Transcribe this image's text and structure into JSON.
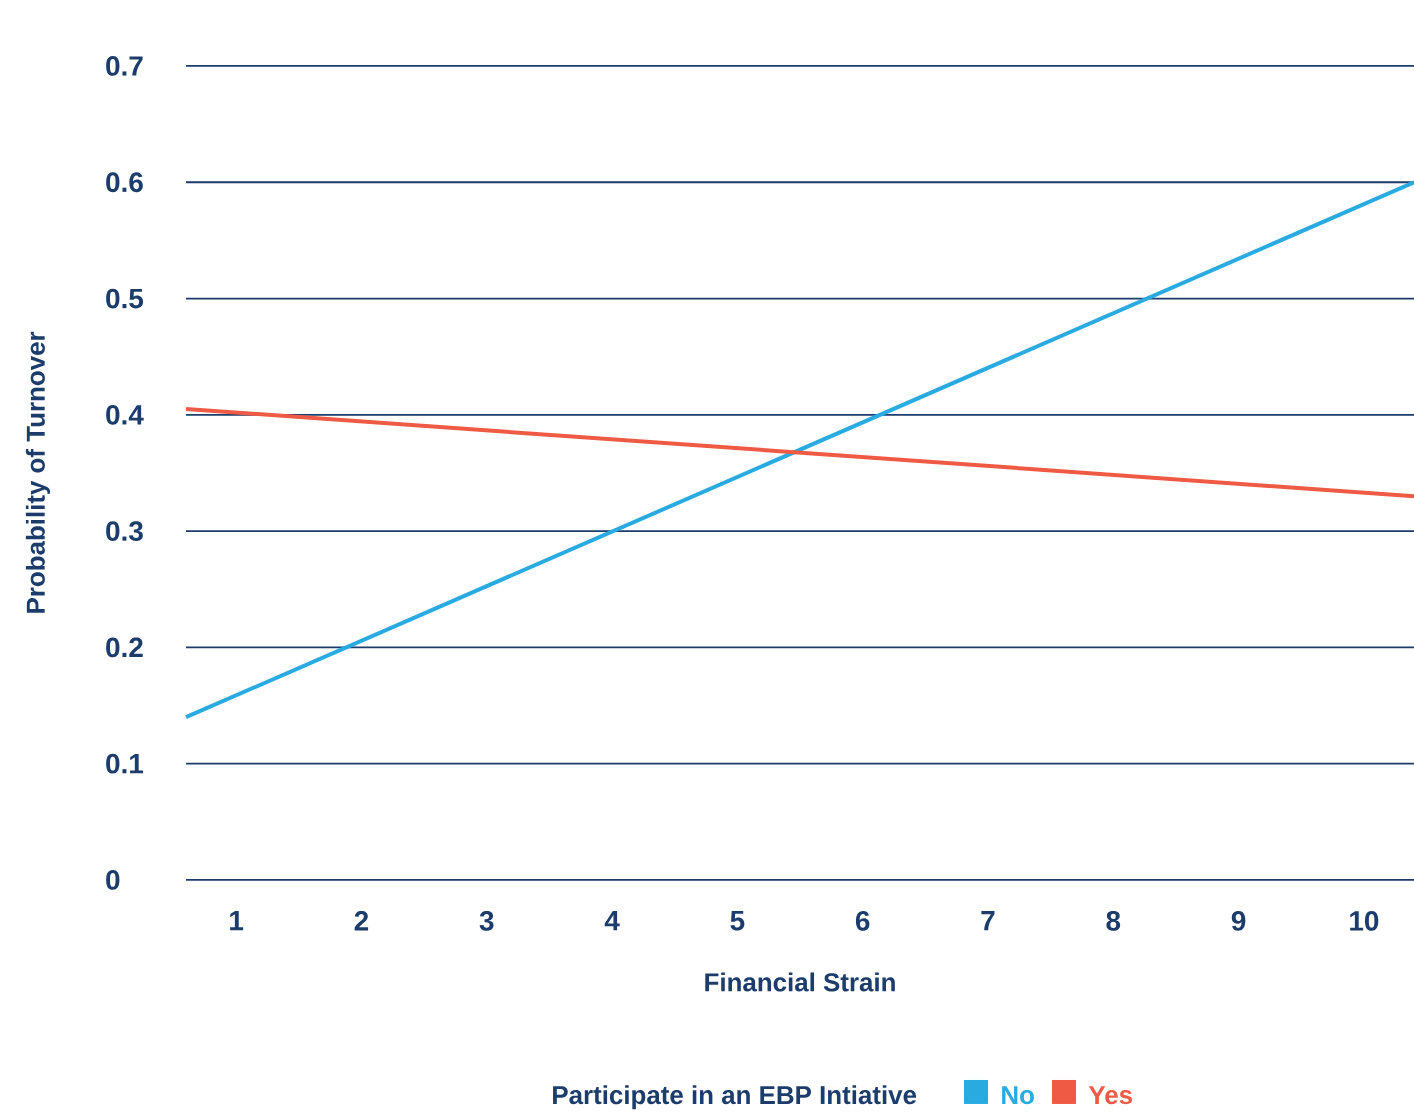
{
  "chart_data": {
    "type": "line",
    "xlabel": "Financial Strain",
    "ylabel": "Probability of Turnover",
    "legend_title": "Participate in an EBP Intiative",
    "xlim": [
      0.6,
      10.4
    ],
    "xticks": [
      1,
      2,
      3,
      4,
      5,
      6,
      7,
      8,
      9,
      10
    ],
    "ylim": [
      0,
      0.7
    ],
    "yticks": [
      0,
      0.1,
      0.2,
      0.3,
      0.4,
      0.5,
      0.6,
      0.7
    ],
    "grid": "y",
    "legend": "bottom",
    "x": [
      0.6,
      10.4
    ],
    "series": [
      {
        "name": "No",
        "color": "#29abe2",
        "values": [
          0.14,
          0.6
        ]
      },
      {
        "name": "Yes",
        "color": "#ef5a45",
        "values": [
          0.405,
          0.33
        ]
      }
    ]
  }
}
